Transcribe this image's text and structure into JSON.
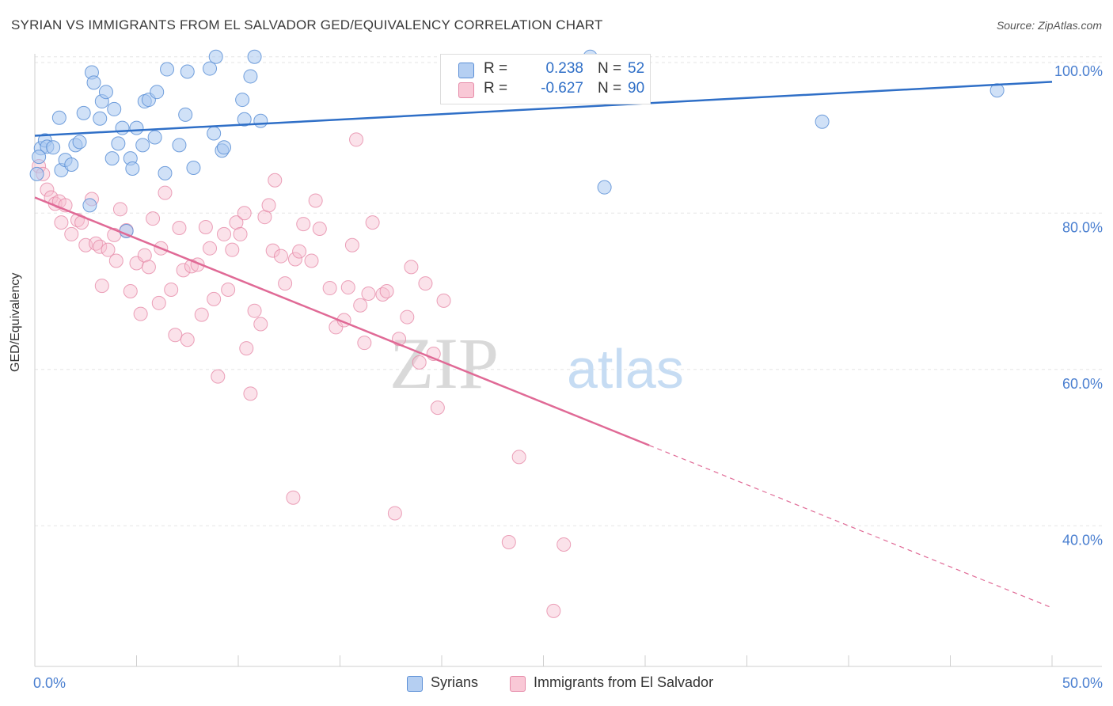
{
  "header": {
    "title": "SYRIAN VS IMMIGRANTS FROM EL SALVADOR GED/EQUIVALENCY CORRELATION CHART",
    "source": "Source: ZipAtlas.com"
  },
  "watermark": {
    "part1": "ZIP",
    "part2": "atlas"
  },
  "colors": {
    "syrians_fill": "#a9c8f0",
    "syrians_stroke": "#5b8fd6",
    "syrians_line": "#2f6fc7",
    "salvador_fill": "#f7bfd0",
    "salvador_stroke": "#e68aa8",
    "salvador_line": "#e06a96",
    "axis_text": "#4a7fd0",
    "grid": "#e6e6e6"
  },
  "legend": {
    "rows": [
      {
        "r_label": "R =",
        "r_value": "0.238",
        "n_label": "N =",
        "n_value": "52"
      },
      {
        "r_label": "R =",
        "r_value": "-0.627",
        "n_label": "N =",
        "n_value": "90"
      }
    ]
  },
  "bottom_legend": {
    "items": [
      "Syrians",
      "Immigrants from El Salvador"
    ]
  },
  "chart_data": {
    "type": "scatter",
    "title": "SYRIAN VS IMMIGRANTS FROM EL SALVADOR GED/EQUIVALENCY CORRELATION CHART",
    "ylabel": "GED/Equivalency",
    "xlabel": "",
    "xlim": [
      0,
      50
    ],
    "ylim": [
      22,
      102
    ],
    "x_ticks_labels": [
      "0.0%",
      "50.0%"
    ],
    "y_ticks": [
      40,
      60,
      80,
      100
    ],
    "y_ticks_labels": [
      "40.0%",
      "60.0%",
      "80.0%",
      "100.0%"
    ],
    "grid": true,
    "legend_position": "top-center",
    "series": [
      {
        "name": "Syrians",
        "trend": {
          "x": [
            0,
            50
          ],
          "y": [
            89.9,
            96.8
          ],
          "dashed_from_x": null
        },
        "points": [
          [
            0.3,
            88.3
          ],
          [
            0.5,
            89.3
          ],
          [
            0.6,
            88.5
          ],
          [
            0.9,
            88.4
          ],
          [
            1.2,
            92.2
          ],
          [
            1.3,
            85.5
          ],
          [
            1.5,
            86.8
          ],
          [
            1.8,
            86.2
          ],
          [
            2.0,
            88.7
          ],
          [
            2.2,
            89.1
          ],
          [
            2.4,
            92.8
          ],
          [
            2.7,
            81.0
          ],
          [
            2.8,
            98.0
          ],
          [
            2.9,
            96.7
          ],
          [
            3.2,
            92.1
          ],
          [
            3.3,
            94.3
          ],
          [
            3.5,
            95.5
          ],
          [
            3.8,
            87.0
          ],
          [
            3.9,
            93.3
          ],
          [
            4.1,
            88.9
          ],
          [
            4.3,
            90.9
          ],
          [
            4.5,
            77.7
          ],
          [
            4.7,
            87.0
          ],
          [
            4.8,
            85.7
          ],
          [
            5.0,
            90.9
          ],
          [
            5.3,
            88.7
          ],
          [
            5.4,
            94.3
          ],
          [
            5.6,
            94.5
          ],
          [
            5.9,
            89.7
          ],
          [
            6.0,
            95.5
          ],
          [
            6.4,
            85.1
          ],
          [
            6.5,
            98.4
          ],
          [
            7.1,
            88.7
          ],
          [
            7.4,
            92.6
          ],
          [
            7.5,
            98.1
          ],
          [
            7.8,
            85.8
          ],
          [
            8.6,
            98.5
          ],
          [
            8.8,
            90.2
          ],
          [
            8.9,
            100.0
          ],
          [
            9.2,
            88.0
          ],
          [
            9.3,
            88.4
          ],
          [
            10.2,
            94.5
          ],
          [
            10.3,
            92.0
          ],
          [
            10.6,
            97.5
          ],
          [
            10.8,
            100.0
          ],
          [
            11.1,
            91.8
          ],
          [
            0.1,
            85.0
          ],
          [
            27.3,
            100.0
          ],
          [
            28.0,
            83.3
          ],
          [
            38.7,
            91.7
          ],
          [
            47.3,
            95.7
          ],
          [
            0.2,
            87.2
          ]
        ]
      },
      {
        "name": "Immigrants from El Salvador",
        "trend": {
          "x": [
            0,
            50
          ],
          "y": [
            82.0,
            29.5
          ],
          "dashed_from_x": 30.2
        },
        "points": [
          [
            0.2,
            86.0
          ],
          [
            0.4,
            85.0
          ],
          [
            0.6,
            83.0
          ],
          [
            0.8,
            82.0
          ],
          [
            1.0,
            81.2
          ],
          [
            1.2,
            81.5
          ],
          [
            1.3,
            78.8
          ],
          [
            1.5,
            81.0
          ],
          [
            1.8,
            77.3
          ],
          [
            2.1,
            79.1
          ],
          [
            2.3,
            78.8
          ],
          [
            2.5,
            75.9
          ],
          [
            2.8,
            81.8
          ],
          [
            3.0,
            76.1
          ],
          [
            3.2,
            75.7
          ],
          [
            3.3,
            70.7
          ],
          [
            3.6,
            75.3
          ],
          [
            3.9,
            77.2
          ],
          [
            4.0,
            73.9
          ],
          [
            4.2,
            80.5
          ],
          [
            4.5,
            77.8
          ],
          [
            4.7,
            70.0
          ],
          [
            5.0,
            73.6
          ],
          [
            5.2,
            67.1
          ],
          [
            5.4,
            74.6
          ],
          [
            5.6,
            73.1
          ],
          [
            5.8,
            79.3
          ],
          [
            6.1,
            68.5
          ],
          [
            6.2,
            75.5
          ],
          [
            6.4,
            82.6
          ],
          [
            6.7,
            70.2
          ],
          [
            6.9,
            64.4
          ],
          [
            7.1,
            78.1
          ],
          [
            7.3,
            72.7
          ],
          [
            7.5,
            63.8
          ],
          [
            7.7,
            73.2
          ],
          [
            8.0,
            73.4
          ],
          [
            8.2,
            67.0
          ],
          [
            8.4,
            78.2
          ],
          [
            8.6,
            75.5
          ],
          [
            8.8,
            69.0
          ],
          [
            9.0,
            59.1
          ],
          [
            9.3,
            77.3
          ],
          [
            9.5,
            70.2
          ],
          [
            9.7,
            75.3
          ],
          [
            9.9,
            78.8
          ],
          [
            10.1,
            77.3
          ],
          [
            10.3,
            80.0
          ],
          [
            10.4,
            62.7
          ],
          [
            10.6,
            56.9
          ],
          [
            10.8,
            67.5
          ],
          [
            11.1,
            65.8
          ],
          [
            11.3,
            79.5
          ],
          [
            11.5,
            81.0
          ],
          [
            11.7,
            75.2
          ],
          [
            11.8,
            84.2
          ],
          [
            12.1,
            74.5
          ],
          [
            12.3,
            71.0
          ],
          [
            12.8,
            74.1
          ],
          [
            13.0,
            75.1
          ],
          [
            13.2,
            78.6
          ],
          [
            13.6,
            73.9
          ],
          [
            13.8,
            81.6
          ],
          [
            14.0,
            78.0
          ],
          [
            14.5,
            70.4
          ],
          [
            14.8,
            65.4
          ],
          [
            15.2,
            66.3
          ],
          [
            15.4,
            70.5
          ],
          [
            15.6,
            75.9
          ],
          [
            16.0,
            68.2
          ],
          [
            16.2,
            63.4
          ],
          [
            16.4,
            69.7
          ],
          [
            16.6,
            78.8
          ],
          [
            17.1,
            69.6
          ],
          [
            17.3,
            70.0
          ],
          [
            17.9,
            63.9
          ],
          [
            18.3,
            66.7
          ],
          [
            18.5,
            73.1
          ],
          [
            18.9,
            60.9
          ],
          [
            19.2,
            71.0
          ],
          [
            19.6,
            62.0
          ],
          [
            19.8,
            55.1
          ],
          [
            20.1,
            68.8
          ],
          [
            15.8,
            89.4
          ],
          [
            12.7,
            43.6
          ],
          [
            17.7,
            41.6
          ],
          [
            23.8,
            48.8
          ],
          [
            23.3,
            37.9
          ],
          [
            26.0,
            37.6
          ],
          [
            25.5,
            29.1
          ]
        ]
      }
    ]
  }
}
